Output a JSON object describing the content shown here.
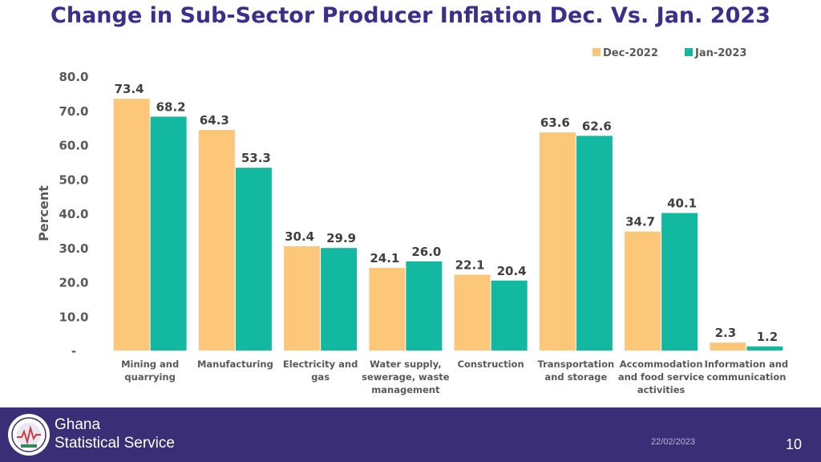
{
  "chart_data": {
    "type": "bar",
    "title": "Change in Sub-Sector Producer Inflation Dec. Vs. Jan. 2023",
    "xlabel": "",
    "ylabel": "Percent",
    "ylim": [
      0,
      80
    ],
    "yticks": [
      "-",
      "10.0",
      "20.0",
      "30.0",
      "40.0",
      "50.0",
      "60.0",
      "70.0",
      "80.0"
    ],
    "legend_position": "top-right",
    "categories": [
      [
        "Mining and",
        "quarrying"
      ],
      [
        "Manufacturing"
      ],
      [
        "Electricity and",
        "gas"
      ],
      [
        "Water supply,",
        "sewerage, waste",
        "management"
      ],
      [
        "Construction"
      ],
      [
        "Transportation",
        "and storage"
      ],
      [
        "Accommodation",
        "and food service",
        "activities"
      ],
      [
        "Information and",
        "communication"
      ]
    ],
    "series": [
      {
        "name": "Dec-2022",
        "color": "#fdc779",
        "values": [
          73.4,
          64.3,
          30.4,
          24.1,
          22.1,
          63.6,
          34.7,
          2.3
        ],
        "labels": [
          "73.4",
          "64.3",
          "30.4",
          "24.1",
          "22.1",
          "63.6",
          "34.7",
          "2.3"
        ]
      },
      {
        "name": "Jan-2023",
        "color": "#12b8a0",
        "values": [
          68.2,
          53.3,
          29.9,
          26.0,
          20.4,
          62.6,
          40.1,
          1.2
        ],
        "labels": [
          "68.2",
          "53.3",
          "29.9",
          "26.0",
          "20.4",
          "62.6",
          "40.1",
          "1.2"
        ]
      }
    ]
  },
  "footer": {
    "org_line1": "Ghana",
    "org_line2": "Statistical Service",
    "date": "22/02/2023",
    "page": "10"
  }
}
